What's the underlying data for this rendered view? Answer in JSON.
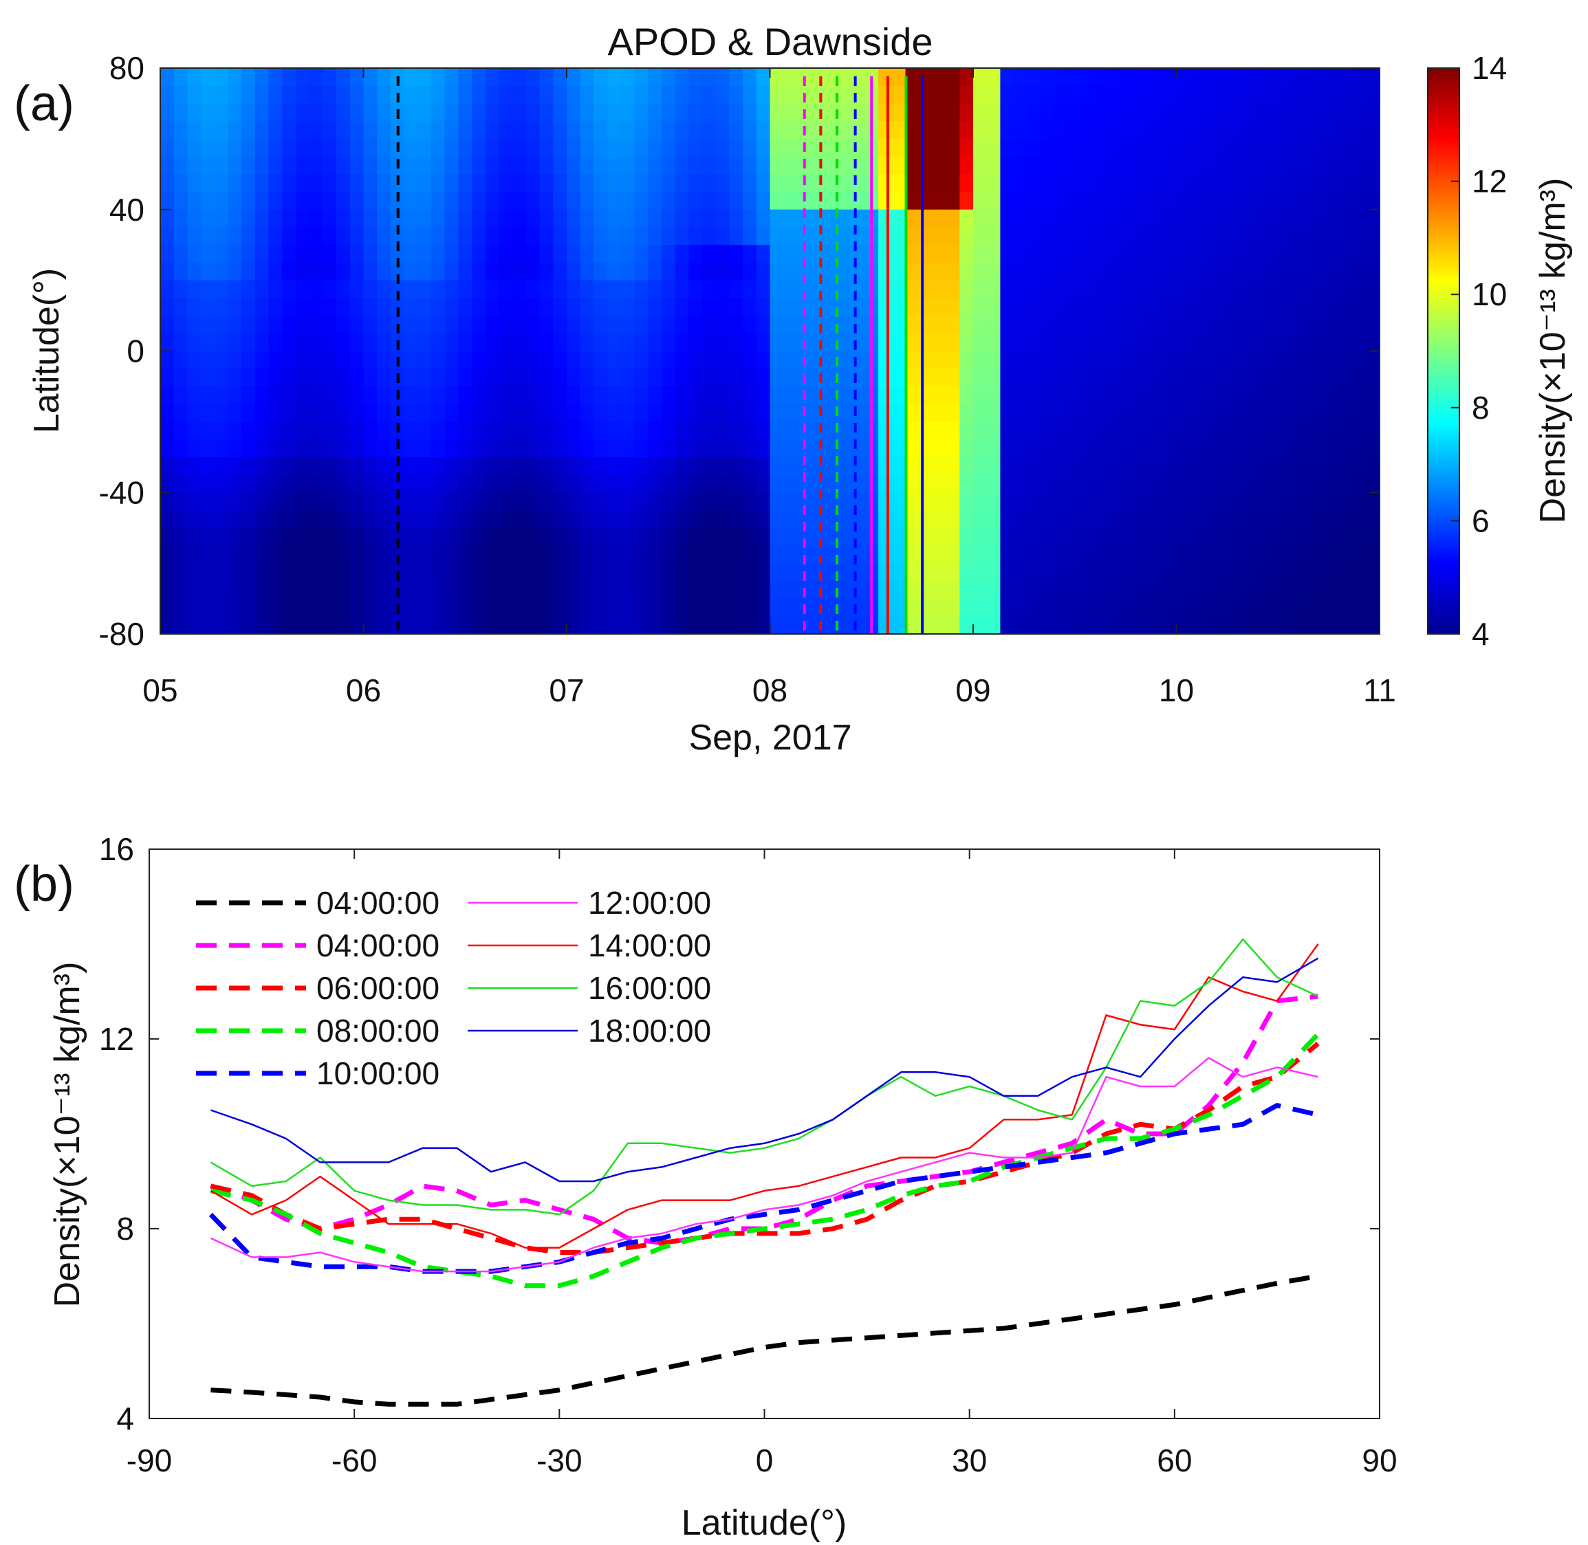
{
  "chart_data": [
    {
      "panel_label": "(a)",
      "type": "heatmap",
      "title": "APOD & Dawnside",
      "xlabel": "Sep, 2017",
      "ylabel": "Latitude(°)",
      "xticks": [
        "05",
        "06",
        "07",
        "08",
        "09",
        "10",
        "11"
      ],
      "xlim": [
        5,
        11
      ],
      "yticks": [
        "-80",
        "-40",
        "0",
        "40",
        "80"
      ],
      "ylim": [
        -80,
        80
      ],
      "colorbar": {
        "label": "Density(×10⁻¹³ kg/m³)",
        "ticks": [
          "4",
          "6",
          "8",
          "10",
          "12",
          "14"
        ],
        "range": [
          4,
          14
        ],
        "colormap": "jet"
      },
      "vertical_lines": [
        {
          "day": 6.17,
          "color": "#000000",
          "style": "dashed"
        },
        {
          "day": 8.17,
          "color": "#ff00ff",
          "style": "dashed"
        },
        {
          "day": 8.25,
          "color": "#ff0000",
          "style": "dashed"
        },
        {
          "day": 8.33,
          "color": "#00dd00",
          "style": "dashed"
        },
        {
          "day": 8.42,
          "color": "#0000ff",
          "style": "dashed"
        },
        {
          "day": 8.5,
          "color": "#ff00ff",
          "style": "solid"
        },
        {
          "day": 8.58,
          "color": "#ff0000",
          "style": "solid"
        },
        {
          "day": 8.67,
          "color": "#00dd00",
          "style": "solid"
        },
        {
          "day": 8.75,
          "color": "#0000ff",
          "style": "solid"
        }
      ]
    },
    {
      "panel_label": "(b)",
      "type": "line",
      "xlabel": "Latitude(°)",
      "ylabel": "Density(×10⁻¹³ kg/m³)",
      "xlim": [
        -90,
        90
      ],
      "ylim": [
        4,
        16
      ],
      "xticks": [
        "-90",
        "-60",
        "-30",
        "0",
        "30",
        "60",
        "90"
      ],
      "yticks": [
        "4",
        "8",
        "12",
        "16"
      ],
      "x": [
        -81,
        -75,
        -70,
        -65,
        -60,
        -55,
        -50,
        -45,
        -40,
        -35,
        -30,
        -25,
        -20,
        -15,
        -10,
        -5,
        0,
        5,
        10,
        15,
        20,
        25,
        30,
        35,
        40,
        45,
        50,
        55,
        60,
        65,
        70,
        75,
        81
      ],
      "series": [
        {
          "name": "04:00:00",
          "color": "#000000",
          "style": "dashed",
          "width": 7,
          "values": [
            4.6,
            4.55,
            4.5,
            4.45,
            4.35,
            4.3,
            4.3,
            4.3,
            4.4,
            4.5,
            4.6,
            4.75,
            4.9,
            5.05,
            5.2,
            5.35,
            5.5,
            5.6,
            5.65,
            5.7,
            5.75,
            5.8,
            5.85,
            5.9,
            6.0,
            6.1,
            6.2,
            6.3,
            6.4,
            6.55,
            6.7,
            6.85,
            7.0
          ]
        },
        {
          "name": "04:00:00",
          "color": "#ff00ff",
          "style": "dashed",
          "width": 7,
          "values": [
            8.9,
            8.6,
            8.2,
            8.0,
            8.2,
            8.5,
            8.9,
            8.8,
            8.5,
            8.6,
            8.4,
            8.2,
            7.8,
            7.7,
            7.8,
            8.0,
            8.0,
            8.2,
            8.6,
            8.9,
            9.0,
            9.1,
            9.2,
            9.4,
            9.6,
            9.8,
            10.3,
            10.0,
            10.0,
            10.6,
            11.5,
            12.8,
            12.9
          ]
        },
        {
          "name": "06:00:00",
          "color": "#ff0000",
          "style": "dashed",
          "width": 7,
          "values": [
            8.9,
            8.7,
            8.3,
            8.0,
            8.1,
            8.2,
            8.2,
            8.0,
            7.8,
            7.6,
            7.5,
            7.5,
            7.6,
            7.7,
            7.8,
            7.9,
            7.9,
            7.9,
            8.0,
            8.2,
            8.6,
            8.9,
            9.0,
            9.2,
            9.4,
            9.6,
            10.0,
            10.2,
            10.1,
            10.5,
            11.0,
            11.2,
            11.9
          ]
        },
        {
          "name": "08:00:00",
          "color": "#00ee00",
          "style": "dashed",
          "width": 7,
          "values": [
            8.8,
            8.6,
            8.3,
            7.9,
            7.7,
            7.5,
            7.2,
            7.1,
            7.0,
            6.8,
            6.8,
            7.0,
            7.3,
            7.6,
            7.8,
            7.9,
            8.0,
            8.1,
            8.2,
            8.4,
            8.7,
            8.9,
            9.0,
            9.3,
            9.5,
            9.7,
            9.9,
            9.9,
            10.1,
            10.4,
            10.8,
            11.2,
            12.1
          ]
        },
        {
          "name": "10:00:00",
          "color": "#0000ff",
          "style": "dashed",
          "width": 7,
          "values": [
            8.3,
            7.4,
            7.3,
            7.2,
            7.2,
            7.2,
            7.1,
            7.1,
            7.1,
            7.2,
            7.3,
            7.5,
            7.7,
            7.8,
            8.0,
            8.2,
            8.3,
            8.4,
            8.6,
            8.8,
            9.0,
            9.1,
            9.2,
            9.3,
            9.4,
            9.5,
            9.6,
            9.8,
            10.0,
            10.1,
            10.2,
            10.6,
            10.4
          ]
        },
        {
          "name": "12:00:00",
          "color": "#ff33ff",
          "style": "solid",
          "width": 2.5,
          "values": [
            7.8,
            7.4,
            7.4,
            7.5,
            7.3,
            7.2,
            7.1,
            7.1,
            7.1,
            7.2,
            7.3,
            7.6,
            7.8,
            7.9,
            8.1,
            8.2,
            8.4,
            8.5,
            8.7,
            9.0,
            9.2,
            9.4,
            9.6,
            9.5,
            9.5,
            9.6,
            11.2,
            11.0,
            11.0,
            11.6,
            11.2,
            11.4,
            11.2
          ]
        },
        {
          "name": "14:00:00",
          "color": "#ff0000",
          "style": "solid",
          "width": 2.5,
          "values": [
            8.8,
            8.3,
            8.6,
            9.1,
            8.6,
            8.1,
            8.1,
            8.1,
            7.9,
            7.6,
            7.6,
            8.0,
            8.4,
            8.6,
            8.6,
            8.6,
            8.8,
            8.9,
            9.1,
            9.3,
            9.5,
            9.5,
            9.7,
            10.3,
            10.3,
            10.4,
            12.5,
            12.3,
            12.2,
            13.3,
            13.0,
            12.8,
            14.0
          ]
        },
        {
          "name": "16:00:00",
          "color": "#22dd22",
          "style": "solid",
          "width": 2.5,
          "values": [
            9.4,
            8.9,
            9.0,
            9.5,
            8.8,
            8.6,
            8.5,
            8.5,
            8.4,
            8.4,
            8.3,
            8.8,
            9.8,
            9.8,
            9.7,
            9.6,
            9.7,
            9.9,
            10.3,
            10.8,
            11.2,
            10.8,
            11.0,
            10.8,
            10.5,
            10.3,
            11.4,
            12.8,
            12.7,
            13.2,
            14.1,
            13.3,
            12.9
          ]
        },
        {
          "name": "18:00:00",
          "color": "#0000dd",
          "style": "solid",
          "width": 2.5,
          "values": [
            10.5,
            10.2,
            9.9,
            9.4,
            9.4,
            9.4,
            9.7,
            9.7,
            9.2,
            9.4,
            9.0,
            9.0,
            9.2,
            9.3,
            9.5,
            9.7,
            9.8,
            10.0,
            10.3,
            10.8,
            11.3,
            11.3,
            11.2,
            10.8,
            10.8,
            11.2,
            11.4,
            11.2,
            12.0,
            12.7,
            13.3,
            13.2,
            13.7
          ]
        }
      ]
    }
  ]
}
